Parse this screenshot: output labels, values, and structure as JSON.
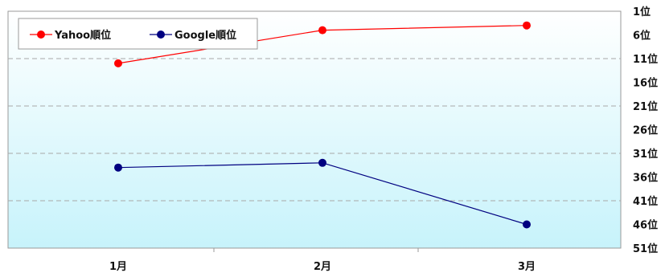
{
  "chart_data": {
    "type": "line",
    "categories": [
      "1月",
      "2月",
      "3月"
    ],
    "series": [
      {
        "name": "Yahoo順位",
        "color": "#ff0000",
        "values": [
          12,
          5,
          4
        ]
      },
      {
        "name": "Google順位",
        "color": "#000080",
        "values": [
          34,
          33,
          46
        ]
      }
    ],
    "y_ticks": [
      "1位",
      "6位",
      "11位",
      "16位",
      "21位",
      "26位",
      "31位",
      "36位",
      "41位",
      "46位",
      "51位"
    ],
    "ylim": [
      1,
      51
    ],
    "y_inverted": true,
    "grid": true,
    "legend_position": "top-left",
    "background_gradient": [
      "#ffffff",
      "#c7f3fb"
    ]
  }
}
